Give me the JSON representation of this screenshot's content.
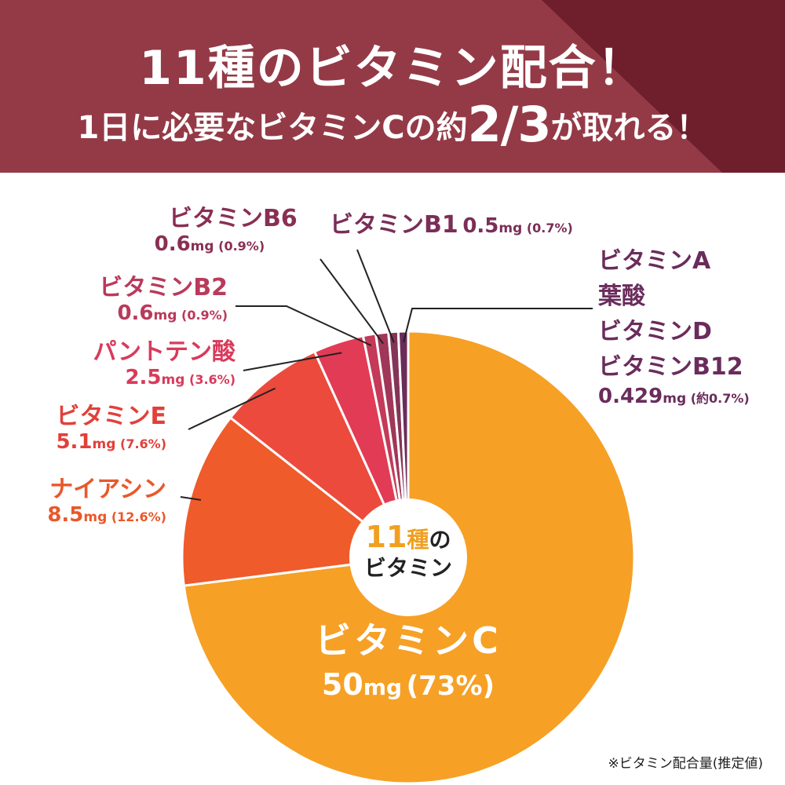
{
  "header": {
    "title": "11種のビタミン配合！",
    "subtitle_pre": "1日に必要なビタミンCの約",
    "subtitle_big": "2/3",
    "subtitle_post": "が取れる！",
    "bg_color": "#943a46",
    "accent_color": "#6e1f2b"
  },
  "center": {
    "count": "11",
    "unit": "種",
    "no": "の",
    "word": "ビタミン"
  },
  "footnote": "※ビタミン配合量(推定値)",
  "labels": [
    {
      "name": "ビタミンC",
      "amount": "50",
      "unit": "mg",
      "pct": "(73%)",
      "color": "#ffffff"
    },
    {
      "name": "ナイアシン",
      "amount": "8.5",
      "unit": "mg",
      "pct": "(12.6%)",
      "color": "#e9582a"
    },
    {
      "name": "ビタミンE",
      "amount": "5.1",
      "unit": "mg",
      "pct": "(7.6%)",
      "color": "#e2403a"
    },
    {
      "name": "パントテン酸",
      "amount": "2.5",
      "unit": "mg",
      "pct": "(3.6%)",
      "color": "#d93a5b"
    },
    {
      "name": "ビタミンB2",
      "amount": "0.6",
      "unit": "mg",
      "pct": "(0.9%)",
      "color": "#b93a5b"
    },
    {
      "name": "ビタミンB6",
      "amount": "0.6",
      "unit": "mg",
      "pct": "(0.9%)",
      "color": "#8a2f54"
    },
    {
      "name": "ビタミンB1",
      "amount": "0.5",
      "unit": "mg",
      "pct": "(0.7%)",
      "color": "#7a2e58"
    },
    {
      "name_lines": [
        "ビタミンA",
        "葉酸",
        "ビタミンD",
        "ビタミンB12"
      ],
      "amount": "0.429",
      "unit": "mg",
      "pct": "(約0.7%)",
      "color": "#6a2c5c"
    }
  ],
  "chart_data": {
    "type": "pie",
    "title": "",
    "categories": [
      "ビタミンC",
      "ナイアシン",
      "ビタミンE",
      "パントテン酸",
      "ビタミンB2",
      "ビタミンB6",
      "ビタミンB1",
      "ビタミンA・葉酸・ビタミンD・ビタミンB12"
    ],
    "values": [
      73,
      12.6,
      7.6,
      3.6,
      0.9,
      0.9,
      0.7,
      0.7
    ],
    "amounts_mg": [
      50,
      8.5,
      5.1,
      2.5,
      0.6,
      0.6,
      0.5,
      0.429
    ],
    "colors": [
      "#f6a025",
      "#ef5b2b",
      "#ec4a3c",
      "#e23b55",
      "#c43a58",
      "#a13758",
      "#843457",
      "#6b2c58"
    ]
  }
}
